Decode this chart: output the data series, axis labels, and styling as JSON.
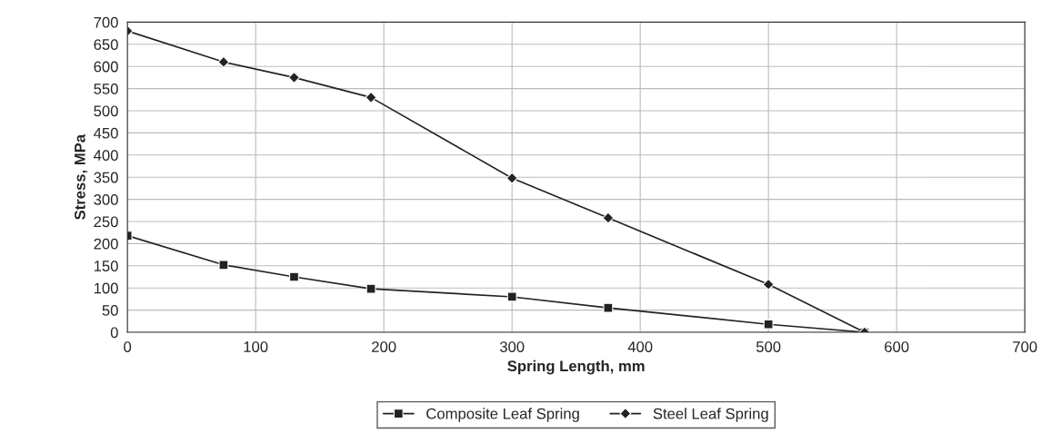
{
  "chart_data": {
    "type": "line",
    "xlabel": "Spring Length, mm",
    "ylabel": "Stress, MPa",
    "series": [
      {
        "name": "Composite Leaf Spring",
        "color": "#222222",
        "marker": "square",
        "x": [
          0,
          75,
          130,
          190,
          300,
          375,
          500,
          575
        ],
        "values": [
          218,
          152,
          125,
          98,
          80,
          55,
          18,
          0
        ]
      },
      {
        "name": "Steel Leaf Spring",
        "color": "#222222",
        "marker": "diamond",
        "x": [
          0,
          75,
          130,
          190,
          300,
          375,
          500,
          575
        ],
        "values": [
          680,
          610,
          575,
          530,
          348,
          258,
          108,
          0
        ]
      }
    ],
    "xlim": [
      0,
      700
    ],
    "xticks": [
      0,
      100,
      200,
      300,
      400,
      500,
      600,
      700
    ],
    "ylim": [
      0,
      700
    ],
    "yticks": [
      0,
      50,
      100,
      150,
      200,
      250,
      300,
      350,
      400,
      450,
      500,
      550,
      600,
      650,
      700
    ],
    "grid": true,
    "legend": "bottom",
    "line_style": "solid"
  }
}
